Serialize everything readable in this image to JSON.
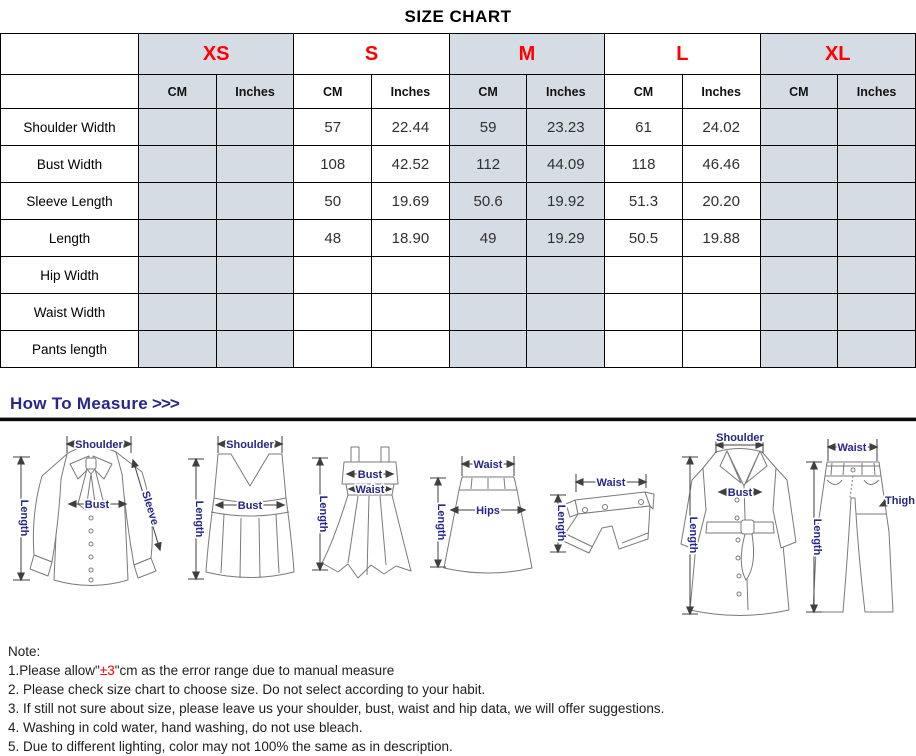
{
  "page": {
    "title": "SIZE CHART"
  },
  "colors": {
    "accent_red": "#ff0000",
    "navy_label": "#26268b",
    "shaded_cell": "#d6dce4",
    "table_border": "#000000"
  },
  "size_table": {
    "sizes": [
      {
        "label": "XS",
        "shaded": true
      },
      {
        "label": "S",
        "shaded": false
      },
      {
        "label": "M",
        "shaded": true
      },
      {
        "label": "L",
        "shaded": false
      },
      {
        "label": "XL",
        "shaded": true
      }
    ],
    "units": [
      "CM",
      "Inches"
    ],
    "rows": [
      {
        "label": "Shoulder Width",
        "values": [
          "",
          "",
          "57",
          "22.44",
          "59",
          "23.23",
          "61",
          "24.02",
          "",
          ""
        ]
      },
      {
        "label": "Bust Width",
        "values": [
          "",
          "",
          "108",
          "42.52",
          "112",
          "44.09",
          "118",
          "46.46",
          "",
          ""
        ]
      },
      {
        "label": "Sleeve Length",
        "values": [
          "",
          "",
          "50",
          "19.69",
          "50.6",
          "19.92",
          "51.3",
          "20.20",
          "",
          ""
        ]
      },
      {
        "label": "Length",
        "values": [
          "",
          "",
          "48",
          "18.90",
          "49",
          "19.29",
          "50.5",
          "19.88",
          "",
          ""
        ]
      },
      {
        "label": "Hip Width",
        "values": [
          "",
          "",
          "",
          "",
          "",
          "",
          "",
          "",
          "",
          ""
        ]
      },
      {
        "label": "Waist Width",
        "values": [
          "",
          "",
          "",
          "",
          "",
          "",
          "",
          "",
          "",
          ""
        ]
      },
      {
        "label": "Pants length",
        "values": [
          "",
          "",
          "",
          "",
          "",
          "",
          "",
          "",
          "",
          ""
        ]
      }
    ]
  },
  "measure": {
    "heading": "How To Measure",
    "arrows": ">>>",
    "figures": [
      {
        "name": "blouse",
        "labels": {
          "shoulder": "Shoulder",
          "length": "Length",
          "bust": "Bust",
          "sleeve": "Sleeve"
        }
      },
      {
        "name": "tank-top",
        "labels": {
          "shoulder": "Shoulder",
          "length": "Length",
          "bust": "Bust"
        }
      },
      {
        "name": "dress",
        "labels": {
          "length": "Length",
          "bust": "Bust",
          "waist": "Waist"
        }
      },
      {
        "name": "skirt",
        "labels": {
          "waist": "Waist",
          "length": "Length",
          "hips": "Hips"
        }
      },
      {
        "name": "shorts",
        "labels": {
          "waist": "Waist",
          "length": "Length"
        }
      },
      {
        "name": "coat",
        "labels": {
          "shoulder": "Shoulder",
          "length": "Length",
          "bust": "Bust"
        }
      },
      {
        "name": "pants",
        "labels": {
          "waist": "Waist",
          "length": "Length",
          "thigh": "Thigh"
        }
      }
    ]
  },
  "notes": {
    "heading": "Note:",
    "line1": {
      "prefix": "1.Please allow\"",
      "highlight": "±3",
      "suffix": "\"cm as the error range due to manual measure"
    },
    "items": [
      "2. Please check size chart to choose size. Do not select according to your habit.",
      "3. If still not sure about size, please leave us your shoulder, bust, waist and hip data, we will offer suggestions.",
      "4. Washing in cold water, hand washing, do not use bleach.",
      "5. Due to different lighting, color may not 100% the same as in description."
    ]
  }
}
